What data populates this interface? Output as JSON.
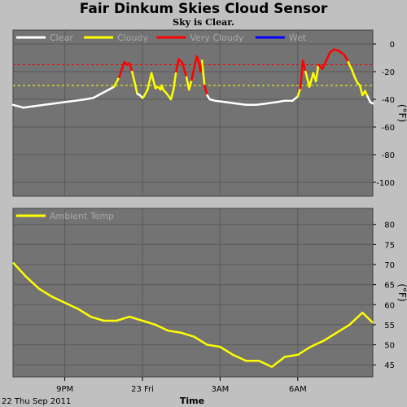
{
  "title": "Fair Dinkum Skies Cloud Sensor",
  "subtitle": "Sky is Clear.",
  "chart_data": [
    {
      "type": "line",
      "ylabel": "(°F)",
      "ylim": [
        -110,
        10
      ],
      "yticks": [
        0,
        -20,
        -40,
        -60,
        -80,
        -100
      ],
      "thresholds": [
        {
          "y": -15,
          "color": "#ff0000"
        },
        {
          "y": -30,
          "color": "#ffff00"
        }
      ],
      "legend": [
        {
          "name": "Clear",
          "color": "#ffffff"
        },
        {
          "name": "Cloudy",
          "color": "#ffff00"
        },
        {
          "name": "Very Cloudy",
          "color": "#ff0000"
        },
        {
          "name": "Wet",
          "color": "#0000ff"
        }
      ],
      "series_colors": {
        "clear": "#ffffff",
        "cloudy": "#ffff00",
        "very_cloudy": "#ff0000"
      },
      "x_hours": [
        0,
        0.4,
        0.8,
        1.2,
        1.6,
        2.0,
        2.4,
        2.8,
        3.1,
        3.3,
        3.5,
        3.7,
        3.9,
        4.1,
        4.3,
        4.4,
        4.5,
        4.6,
        4.8,
        4.9,
        5.0,
        5.05,
        5.2,
        5.35,
        5.5,
        5.6,
        5.7,
        5.75,
        5.8,
        5.9,
        6.1,
        6.2,
        6.3,
        6.4,
        6.55,
        6.7,
        6.8,
        6.9,
        7.0,
        7.1,
        7.15,
        7.25,
        7.3,
        7.4,
        7.5,
        7.6,
        7.8,
        8.2,
        8.6,
        9.0,
        9.4,
        9.8,
        10.2,
        10.5,
        10.8,
        11.0,
        11.1,
        11.2,
        11.3,
        11.45,
        11.6,
        11.7,
        11.8,
        11.95,
        12.1,
        12.25,
        12.4,
        12.6,
        12.8,
        12.95,
        13.1,
        13.2,
        13.3,
        13.4,
        13.5,
        13.6,
        13.7,
        13.8,
        13.9
      ],
      "values": [
        -44,
        -46,
        -45,
        -44,
        -43,
        -42,
        -41,
        -40,
        -39,
        -37,
        -35,
        -33,
        -31,
        -24,
        -13,
        -15,
        -14,
        -20,
        -36,
        -37,
        -39,
        -38,
        -33,
        -21,
        -32,
        -31,
        -33,
        -30,
        -33,
        -35,
        -40,
        -33,
        -20,
        -11,
        -14,
        -24,
        -33,
        -26,
        -17,
        -9,
        -11,
        -20,
        -12,
        -30,
        -37,
        -40,
        -41,
        -42,
        -43,
        -44,
        -44,
        -43,
        -42,
        -41,
        -41,
        -38,
        -32,
        -12,
        -20,
        -31,
        -21,
        -27,
        -15,
        -18,
        -12,
        -6,
        -4,
        -5,
        -8,
        -13,
        -19,
        -24,
        -28,
        -30,
        -37,
        -34,
        -38,
        -42,
        -43
      ],
      "state": [
        "clear",
        "clear",
        "clear",
        "clear",
        "clear",
        "clear",
        "clear",
        "clear",
        "clear",
        "clear",
        "clear",
        "clear",
        "clear",
        "cloudy",
        "very_cloudy",
        "very_cloudy",
        "very_cloudy",
        "very_cloudy",
        "cloudy",
        "clear",
        "clear",
        "cloudy",
        "cloudy",
        "cloudy",
        "cloudy",
        "cloudy",
        "cloudy",
        "cloudy",
        "cloudy",
        "cloudy",
        "cloudy",
        "cloudy",
        "cloudy",
        "very_cloudy",
        "very_cloudy",
        "very_cloudy",
        "cloudy",
        "cloudy",
        "very_cloudy",
        "very_cloudy",
        "very_cloudy",
        "very_cloudy",
        "very_cloudy",
        "cloudy",
        "very_cloudy",
        "clear",
        "clear",
        "clear",
        "clear",
        "clear",
        "clear",
        "clear",
        "clear",
        "clear",
        "clear",
        "clear",
        "cloudy",
        "very_cloudy",
        "very_cloudy",
        "cloudy",
        "cloudy",
        "cloudy",
        "cloudy",
        "very_cloudy",
        "very_cloudy",
        "very_cloudy",
        "very_cloudy",
        "very_cloudy",
        "very_cloudy",
        "very_cloudy",
        "cloudy",
        "cloudy",
        "cloudy",
        "cloudy",
        "cloudy",
        "cloudy",
        "cloudy",
        "clear",
        "clear"
      ]
    },
    {
      "type": "line",
      "ylabel": "(°F)",
      "ylim": [
        42,
        84
      ],
      "yticks": [
        80,
        75,
        70,
        65,
        60,
        55,
        50,
        45
      ],
      "legend": [
        {
          "name": "Ambient Temp",
          "color": "#ffff00"
        }
      ],
      "series": [
        {
          "name": "Ambient Temp",
          "x_hours": [
            0,
            0.5,
            1,
            1.5,
            2,
            2.5,
            3,
            3.5,
            4,
            4.5,
            5,
            5.5,
            6,
            6.5,
            7,
            7.5,
            8,
            8.5,
            9,
            9.5,
            10,
            10.5,
            11,
            11.5,
            12,
            12.5,
            13,
            13.5,
            13.9
          ],
          "values": [
            70.5,
            67,
            64,
            62,
            60.5,
            59,
            57,
            56,
            56,
            57,
            56,
            55,
            53.5,
            53,
            52,
            50,
            49.5,
            47.5,
            46,
            46,
            44.5,
            47,
            47.5,
            49.5,
            51,
            53,
            55,
            58,
            55.5
          ]
        }
      ]
    }
  ],
  "x_axis": {
    "start_hour": 19,
    "end_hour": 32.9,
    "ticks": [
      {
        "hour": 21,
        "label": "9PM"
      },
      {
        "hour": 24,
        "label": "23 Fri"
      },
      {
        "hour": 27,
        "label": "3AM"
      },
      {
        "hour": 30,
        "label": "6AM"
      }
    ],
    "label": "Time",
    "date_label": "22 Thu Sep 2011"
  }
}
